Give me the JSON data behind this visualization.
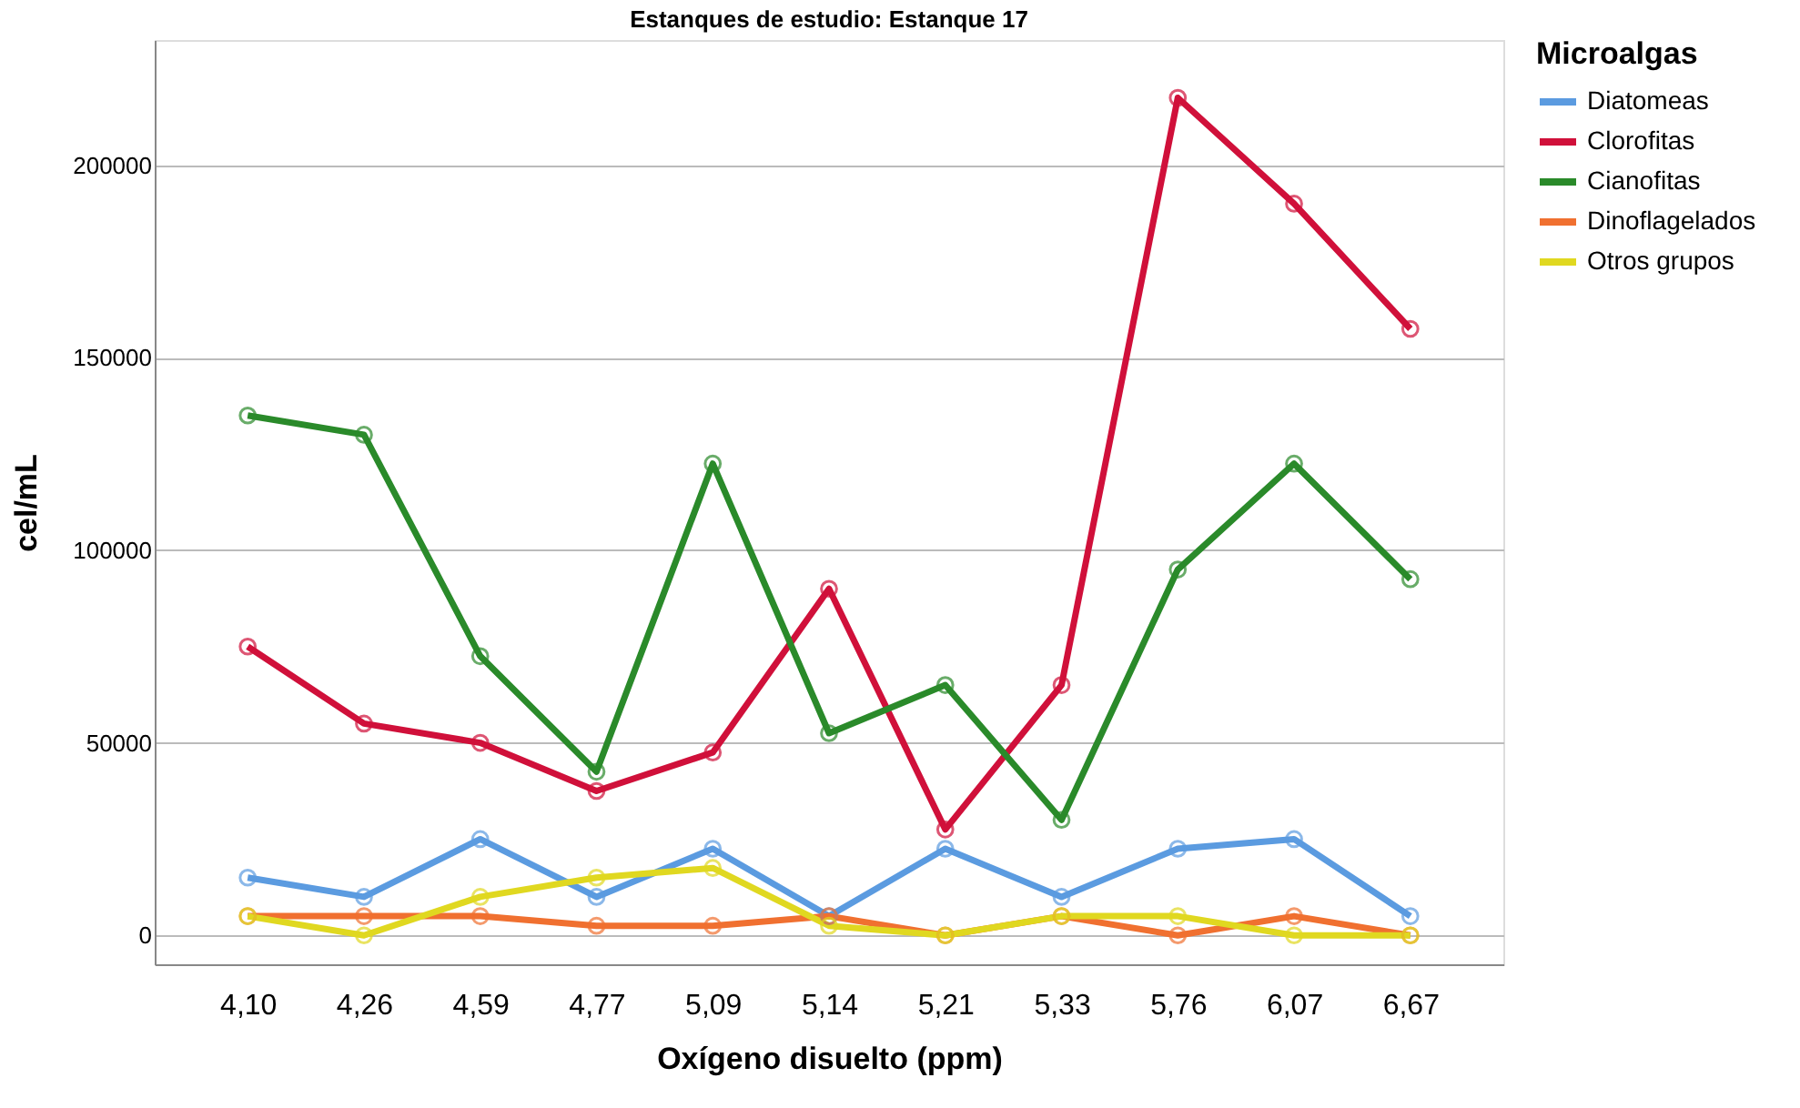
{
  "chart_data": {
    "type": "line",
    "title": "Estanques de estudio: Estanque 17",
    "xlabel": "Oxígeno disuelto (ppm)",
    "ylabel": "cel/mL",
    "legend_title": "Microalgas",
    "categories": [
      "4,10",
      "4,26",
      "4,59",
      "4,77",
      "5,09",
      "5,14",
      "5,21",
      "5,33",
      "5,76",
      "6,07",
      "6,67"
    ],
    "series": [
      {
        "name": "Diatomeas",
        "color": "#5b9be0",
        "values": [
          15000,
          10000,
          25000,
          10000,
          22500,
          5000,
          22500,
          10000,
          22500,
          25000,
          5000
        ]
      },
      {
        "name": "Clorofitas",
        "color": "#d0103a",
        "values": [
          75000,
          55000,
          50000,
          37500,
          47500,
          90000,
          27500,
          65000,
          217500,
          190000,
          157500
        ]
      },
      {
        "name": "Cianofitas",
        "color": "#2a8a2a",
        "values": [
          135000,
          130000,
          72500,
          42500,
          122500,
          52500,
          65000,
          30000,
          95000,
          122500,
          92500
        ]
      },
      {
        "name": "Dinoflagelados",
        "color": "#f07030",
        "values": [
          5000,
          5000,
          5000,
          2500,
          2500,
          5000,
          0,
          5000,
          0,
          5000,
          0
        ]
      },
      {
        "name": "Otros grupos",
        "color": "#e0d820",
        "values": [
          5000,
          0,
          10000,
          15000,
          17500,
          2500,
          0,
          5000,
          5000,
          0,
          0
        ]
      }
    ],
    "ylim": [
      -7500,
      232500
    ],
    "yticks": [
      0,
      50000,
      100000,
      150000,
      200000
    ],
    "grid": "y",
    "legend": "top right",
    "marker": "circle",
    "line_style": "solid"
  }
}
